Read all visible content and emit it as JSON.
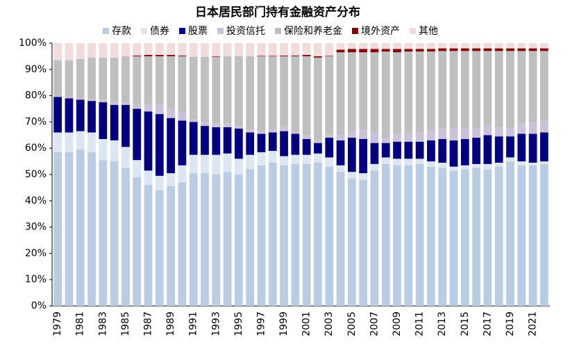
{
  "chart_data": {
    "type": "stacked_bar",
    "title": "日本居民部门持有金融资产分布",
    "categories": [
      "1979",
      null,
      "1981",
      null,
      "1983",
      null,
      "1985",
      null,
      "1987",
      null,
      "1989",
      null,
      "1991",
      null,
      "1993",
      null,
      "1995",
      null,
      "1997",
      null,
      "1999",
      null,
      "2001",
      null,
      "2003",
      null,
      "2005",
      null,
      "2007",
      null,
      "2009",
      null,
      "2011",
      null,
      "2013",
      null,
      "2015",
      null,
      "2017",
      null,
      "2019",
      null,
      "2021",
      null
    ],
    "series": [
      {
        "name": "存款",
        "color": "#b8cce4",
        "values": [
          58.5,
          58.5,
          59.5,
          58.5,
          55.5,
          55,
          52.5,
          49,
          46,
          44,
          45.5,
          47,
          50.5,
          50.5,
          50,
          51,
          50,
          52,
          53.5,
          54.5,
          53.5,
          54,
          54,
          54.5,
          53,
          51,
          48.5,
          48,
          51.5,
          54,
          53.5,
          53.5,
          54,
          53,
          52.5,
          51.5,
          52,
          52.5,
          52,
          53,
          55,
          53.5,
          53.5,
          54
        ]
      },
      {
        "name": "债券",
        "color": "#dce6f2",
        "values": [
          7.5,
          7.5,
          7,
          7.5,
          8,
          8,
          8,
          6.5,
          5.5,
          5.5,
          5,
          6.5,
          7,
          7,
          7.5,
          7,
          6,
          5.5,
          5,
          4.5,
          3.5,
          3.5,
          3.5,
          3.5,
          3.5,
          2.5,
          2.5,
          2.5,
          2.5,
          2.5,
          2.5,
          2.5,
          2,
          2,
          2,
          1.5,
          1.5,
          1.5,
          2,
          1.5,
          1.5,
          1.5,
          1,
          1
        ]
      },
      {
        "name": "股票",
        "color": "#000080",
        "values": [
          13.5,
          13,
          12,
          12,
          14,
          13.5,
          16,
          19.5,
          22.5,
          23.5,
          21,
          17,
          12.5,
          11,
          10.5,
          10,
          11.5,
          8.5,
          7,
          7,
          9.5,
          8,
          6,
          4,
          7.5,
          9.5,
          13,
          13,
          8,
          5.5,
          6.5,
          6.5,
          6.5,
          8,
          9,
          10,
          10,
          10,
          11,
          10,
          8,
          10.5,
          11,
          11
        ]
      },
      {
        "name": "投资信托",
        "color": "#ccc1da",
        "values": [
          0.5,
          0.5,
          0.5,
          0.5,
          1,
          1,
          1,
          2,
          3,
          4,
          4,
          3,
          1,
          1.5,
          1.5,
          1.5,
          1,
          1,
          1,
          1,
          2,
          0.5,
          1.5,
          1.5,
          1.5,
          2,
          2.5,
          3.5,
          4,
          2,
          3,
          3.5,
          3.5,
          3.5,
          4,
          4.5,
          4,
          3.5,
          3.5,
          3.5,
          3.5,
          4,
          4.5,
          4.5
        ]
      },
      {
        "name": "保险和养老金",
        "color": "#bfbfbf",
        "values": [
          13.5,
          14,
          15,
          16,
          16,
          17,
          17.5,
          18,
          18,
          18,
          19.5,
          21.5,
          23.8,
          24.8,
          25.3,
          25.5,
          26.5,
          28,
          28.5,
          28,
          26.5,
          29,
          30,
          31,
          29.5,
          31.5,
          30,
          29.5,
          30.5,
          32.8,
          31,
          30.8,
          30.8,
          30.3,
          29.5,
          29.5,
          29.5,
          29.5,
          28.5,
          29,
          29,
          27.5,
          27,
          26.5
        ]
      },
      {
        "name": "境外资产",
        "color": "#8b0000",
        "values": [
          0,
          0,
          0,
          0,
          0,
          0,
          0,
          0.3,
          0.5,
          0.5,
          0.5,
          0.3,
          0,
          0,
          0.2,
          0,
          0,
          0,
          0.2,
          0.2,
          0.3,
          0.3,
          0.5,
          0.5,
          0.2,
          1,
          1.3,
          1.3,
          1.3,
          1,
          1.3,
          1,
          1,
          1,
          1,
          1,
          1,
          1,
          1,
          1,
          1,
          1,
          1,
          1
        ]
      },
      {
        "name": "其他",
        "color": "#f2dcdb",
        "values": [
          6.5,
          6.5,
          6,
          5.5,
          5.5,
          5.5,
          5,
          4.7,
          4.5,
          4.5,
          4.5,
          4.7,
          5.2,
          5.2,
          5,
          5,
          5,
          5,
          4.8,
          4.8,
          4.7,
          4.7,
          4.5,
          5,
          4.8,
          2.5,
          2.2,
          2.2,
          2.2,
          2.2,
          2.2,
          2.2,
          2.2,
          2.2,
          2,
          2,
          2,
          2,
          2,
          2,
          2,
          2,
          2,
          2
        ]
      }
    ],
    "ylim": [
      0,
      100
    ],
    "yticks": [
      {
        "value": 0,
        "label": "0%"
      },
      {
        "value": 10,
        "label": "10%"
      },
      {
        "value": 20,
        "label": "20%"
      },
      {
        "value": 30,
        "label": "30%"
      },
      {
        "value": 40,
        "label": "40%"
      },
      {
        "value": 50,
        "label": "50%"
      },
      {
        "value": 60,
        "label": "60%"
      },
      {
        "value": 70,
        "label": "70%"
      },
      {
        "value": 80,
        "label": "80%"
      },
      {
        "value": 90,
        "label": "90%"
      },
      {
        "value": 100,
        "label": "100%"
      }
    ],
    "grid": false
  }
}
